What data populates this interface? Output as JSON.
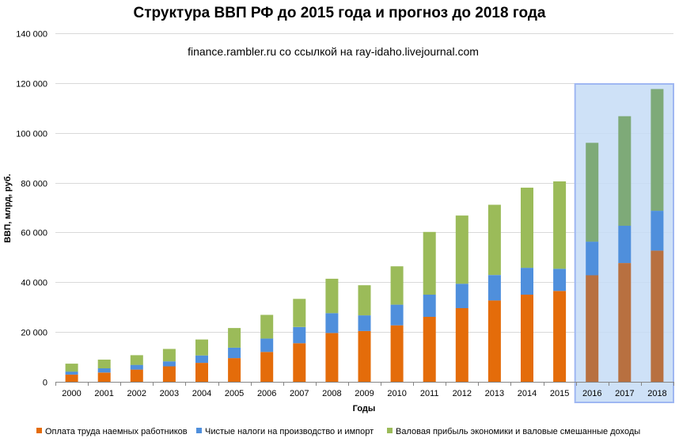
{
  "chart_data": {
    "type": "bar",
    "stacked": true,
    "title": "Структура ВВП РФ до 2015 года и прогноз до 2018 года",
    "subtitle": "finance.rambler.ru со ссылкой на ray-idaho.livejournal.com",
    "xlabel": "Годы",
    "ylabel": "ВВП, млрд, руб.",
    "ylim": [
      0,
      140000
    ],
    "yticks": [
      0,
      20000,
      40000,
      60000,
      80000,
      100000,
      120000,
      140000
    ],
    "ytick_labels": [
      "0",
      "20 000",
      "40 000",
      "60 000",
      "80 000",
      "100 000",
      "120 000",
      "140 000"
    ],
    "grid": true,
    "legend_position": "bottom",
    "forecast_highlight": [
      "2016",
      "2017",
      "2018"
    ],
    "categories": [
      "2000",
      "2001",
      "2002",
      "2003",
      "2004",
      "2005",
      "2006",
      "2007",
      "2008",
      "2009",
      "2010",
      "2011",
      "2012",
      "2013",
      "2014",
      "2015",
      "2016",
      "2017",
      "2018"
    ],
    "series": [
      {
        "name": "Оплата труда наемных работников",
        "color": "#e46c0a",
        "forecast_color": "#b87040",
        "values": [
          2900,
          3700,
          4900,
          6200,
          7600,
          9500,
          12000,
          15500,
          19600,
          20400,
          22700,
          26100,
          29600,
          32700,
          35000,
          36500,
          42800,
          47700,
          52700
        ]
      },
      {
        "name": "Чистые налоги на производство и импорт",
        "color": "#4f8fdc",
        "forecast_color": "#4f8fdc",
        "values": [
          1200,
          1700,
          1900,
          2000,
          3000,
          4200,
          5400,
          6500,
          8000,
          6300,
          8300,
          8900,
          9800,
          10200,
          10800,
          8900,
          13500,
          15000,
          16000
        ]
      },
      {
        "name": "Валовая прибыль экономики и валовые смешанные доходы",
        "color": "#9bbb59",
        "forecast_color": "#7eaa78",
        "values": [
          3200,
          3500,
          3900,
          5000,
          6400,
          7900,
          9500,
          11300,
          13800,
          12100,
          15400,
          25200,
          27400,
          28200,
          32200,
          35100,
          39700,
          44000,
          48900
        ]
      }
    ]
  }
}
